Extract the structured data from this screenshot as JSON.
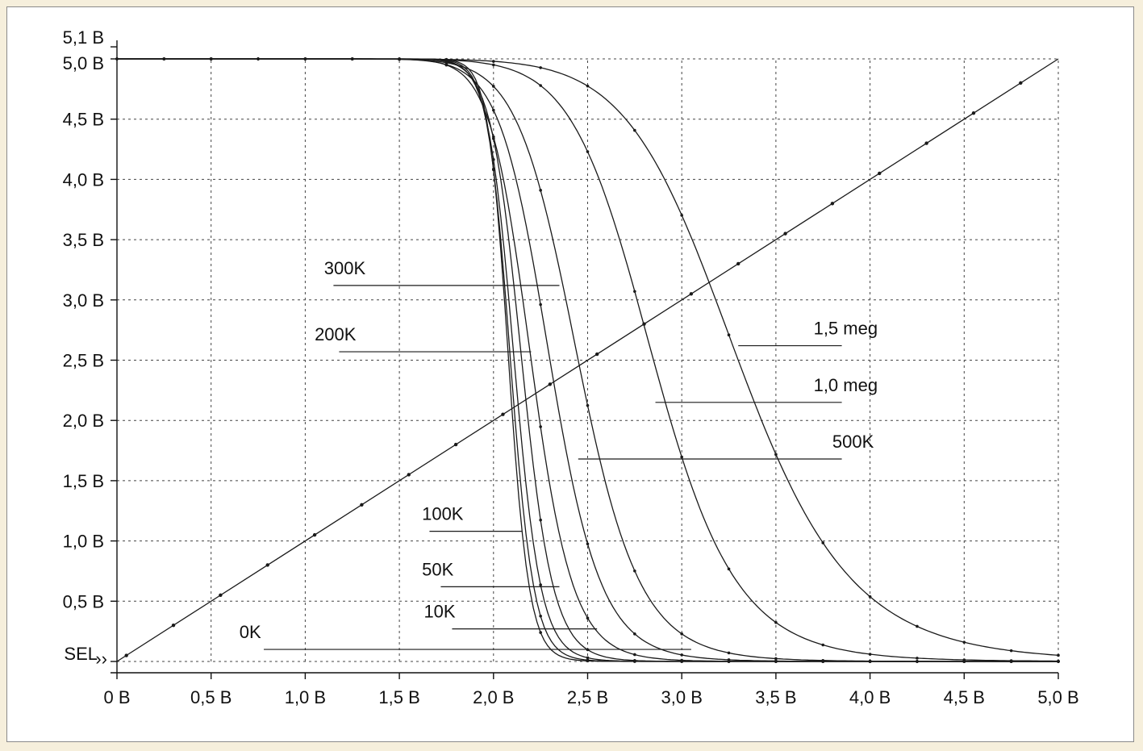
{
  "chart_data": {
    "type": "line",
    "title": "",
    "xlabel": "",
    "ylabel": "",
    "xlim": [
      0,
      5.0
    ],
    "ylim": [
      0,
      5.1
    ],
    "x_ticks": [
      0,
      0.5,
      1.0,
      1.5,
      2.0,
      2.5,
      3.0,
      3.5,
      4.0,
      4.5,
      5.0
    ],
    "x_tick_labels": [
      "0 B",
      "0,5 B",
      "1,0 B",
      "1,5 B",
      "2,0 B",
      "2,5 B",
      "3,0 B",
      "3,5 B",
      "4,0 B",
      "4,5 B",
      "5,0 B"
    ],
    "y_ticks": [
      0.5,
      1.0,
      1.5,
      2.0,
      2.5,
      3.0,
      3.5,
      4.0,
      4.5,
      5.0,
      5.1
    ],
    "y_tick_labels": [
      "0,5 B",
      "1,0 B",
      "1,5 B",
      "2,0 B",
      "2,5 B",
      "3,0 B",
      "3,5 B",
      "4,0 B",
      "4,5 B",
      "5,0 B",
      "5,1 B"
    ],
    "y_baseline_label": "SEL",
    "grid": true,
    "reference_line": {
      "x": [
        0,
        5.0
      ],
      "y": [
        0,
        5.0
      ]
    },
    "series": [
      {
        "name": "0K",
        "threshold": 2.08,
        "label_y": 0.1
      },
      {
        "name": "10K",
        "threshold": 2.09,
        "label_y": 0.27
      },
      {
        "name": "50K",
        "threshold": 2.11,
        "label_y": 0.62
      },
      {
        "name": "100K",
        "threshold": 2.15,
        "label_y": 1.08
      },
      {
        "name": "200K",
        "threshold": 2.2,
        "label_y": 2.57
      },
      {
        "name": "300K",
        "threshold": 2.3,
        "label_y": 3.12
      },
      {
        "name": "500K",
        "threshold": 2.45,
        "label_y": 1.68
      },
      {
        "name": "1,0 meg",
        "threshold": 2.85,
        "label_y": 2.15
      },
      {
        "name": "1,5 meg",
        "threshold": 3.3,
        "label_y": 2.62
      }
    ]
  }
}
